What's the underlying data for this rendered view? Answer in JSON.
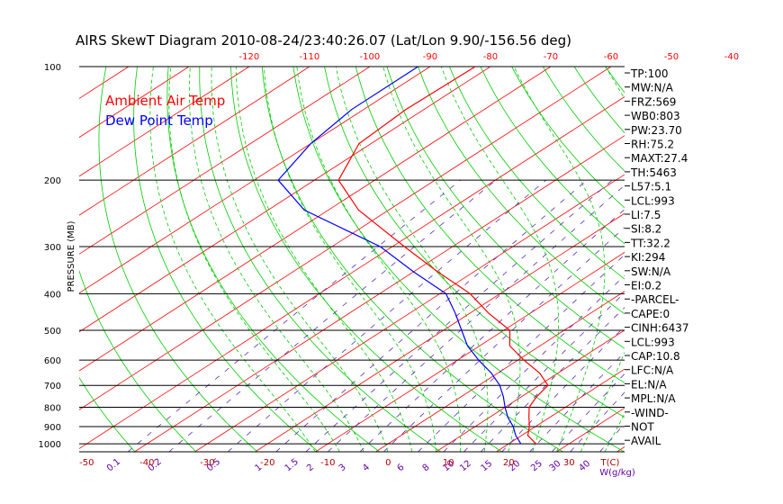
{
  "chart_data": {
    "type": "line",
    "title": "AIRS SkewT Diagram 2010-08-24/23:40:26.07 (Lat/Lon 9.90/-156.56 deg)",
    "ylabel": "PRESSURE (MB)",
    "y_scale": "log",
    "ylim": [
      1050,
      100
    ],
    "xlim": [
      -50,
      40
    ],
    "pressure_ticks": [
      100,
      200,
      300,
      400,
      500,
      600,
      700,
      800,
      900,
      1000
    ],
    "pressure_labels": [
      "100",
      "200",
      "300",
      "400",
      "500",
      "600",
      "700",
      "800",
      "900",
      "1000"
    ],
    "top_temp_ticks": [
      -120,
      -110,
      -100,
      -90,
      -80,
      -70,
      -60,
      -50,
      -40
    ],
    "top_temp_labels": [
      "-120",
      "-110",
      "-100",
      "-90",
      "-80",
      "-70",
      "-60",
      "-50",
      "-40"
    ],
    "bottom_temp_ticks": [
      -50,
      -40,
      -30,
      -20,
      -10,
      0,
      10,
      20,
      30
    ],
    "bottom_temp_labels": [
      "-50",
      "-40",
      "-30",
      "-20",
      "-10",
      "0",
      "10",
      "20",
      "30"
    ],
    "bottom_unit_label": "T(C)",
    "mixing_ratio_labels": [
      "0.1",
      "0.2",
      "0.5",
      "1",
      "1.5",
      "2",
      "3",
      "4",
      "6",
      "8",
      "10",
      "12",
      "15",
      "20",
      "25",
      "30",
      "40"
    ],
    "mixing_ratio_values": [
      0.1,
      0.2,
      0.5,
      1,
      1.5,
      2,
      3,
      4,
      6,
      8,
      10,
      12,
      15,
      20,
      25,
      30,
      40
    ],
    "mixing_ratio_unit": "W(g/kg)",
    "series": [
      {
        "name": "Ambient Air Temp",
        "color": "#ff0000",
        "points": [
          [
            100,
            -82.5
          ],
          [
            130,
            -83
          ],
          [
            160,
            -82
          ],
          [
            200,
            -76
          ],
          [
            240,
            -65
          ],
          [
            300,
            -48
          ],
          [
            350,
            -36
          ],
          [
            400,
            -25
          ],
          [
            450,
            -17
          ],
          [
            500,
            -9
          ],
          [
            550,
            -5
          ],
          [
            600,
            1
          ],
          [
            650,
            7
          ],
          [
            700,
            11.5
          ],
          [
            750,
            12.5
          ],
          [
            800,
            14
          ],
          [
            850,
            16.5
          ],
          [
            900,
            19
          ],
          [
            950,
            21
          ],
          [
            1000,
            24.5
          ]
        ]
      },
      {
        "name": "Dew Point Temp",
        "color": "#0000ff",
        "points": [
          [
            100,
            -92
          ],
          [
            130,
            -92
          ],
          [
            160,
            -90
          ],
          [
            200,
            -86
          ],
          [
            240,
            -74
          ],
          [
            300,
            -52
          ],
          [
            350,
            -40
          ],
          [
            400,
            -29
          ],
          [
            450,
            -22.5
          ],
          [
            500,
            -17
          ],
          [
            550,
            -12
          ],
          [
            600,
            -6.5
          ],
          [
            650,
            -1
          ],
          [
            700,
            3.5
          ],
          [
            750,
            7
          ],
          [
            800,
            10
          ],
          [
            850,
            13
          ],
          [
            900,
            16.3
          ],
          [
            950,
            19
          ],
          [
            1000,
            22
          ]
        ]
      }
    ],
    "grid": true
  },
  "indices": [
    "TP:100",
    "MW:N/A",
    "FRZ:569",
    "WB0:803",
    "PW:23.70",
    "RH:75.2",
    "MAXT:27.4",
    "TH:5463",
    "L57:5.1",
    "LCL:993",
    "LI:7.5",
    "SI:8.2",
    "TT:32.2",
    "KI:294",
    "SW:N/A",
    "EI:0.2",
    "-PARCEL-",
    "CAPE:0",
    "CINH:6437",
    "LCL:993",
    "CAP:10.8",
    "LFC:N/A",
    "EL:N/A",
    "MPL:N/A",
    "-WIND-",
    "NOT",
    "AVAIL"
  ],
  "colors": {
    "isotherm": "#ff0000",
    "dry_adiabat": "#00cc00",
    "moist_adiabat": "#00cc00",
    "mixing_ratio": "#5a2db5",
    "temperature": "#ff0000",
    "dewpoint": "#0000ff",
    "tick_top": "#ff0000",
    "tick_bottom": "#b00000",
    "mixing_label": "#6600aa"
  }
}
